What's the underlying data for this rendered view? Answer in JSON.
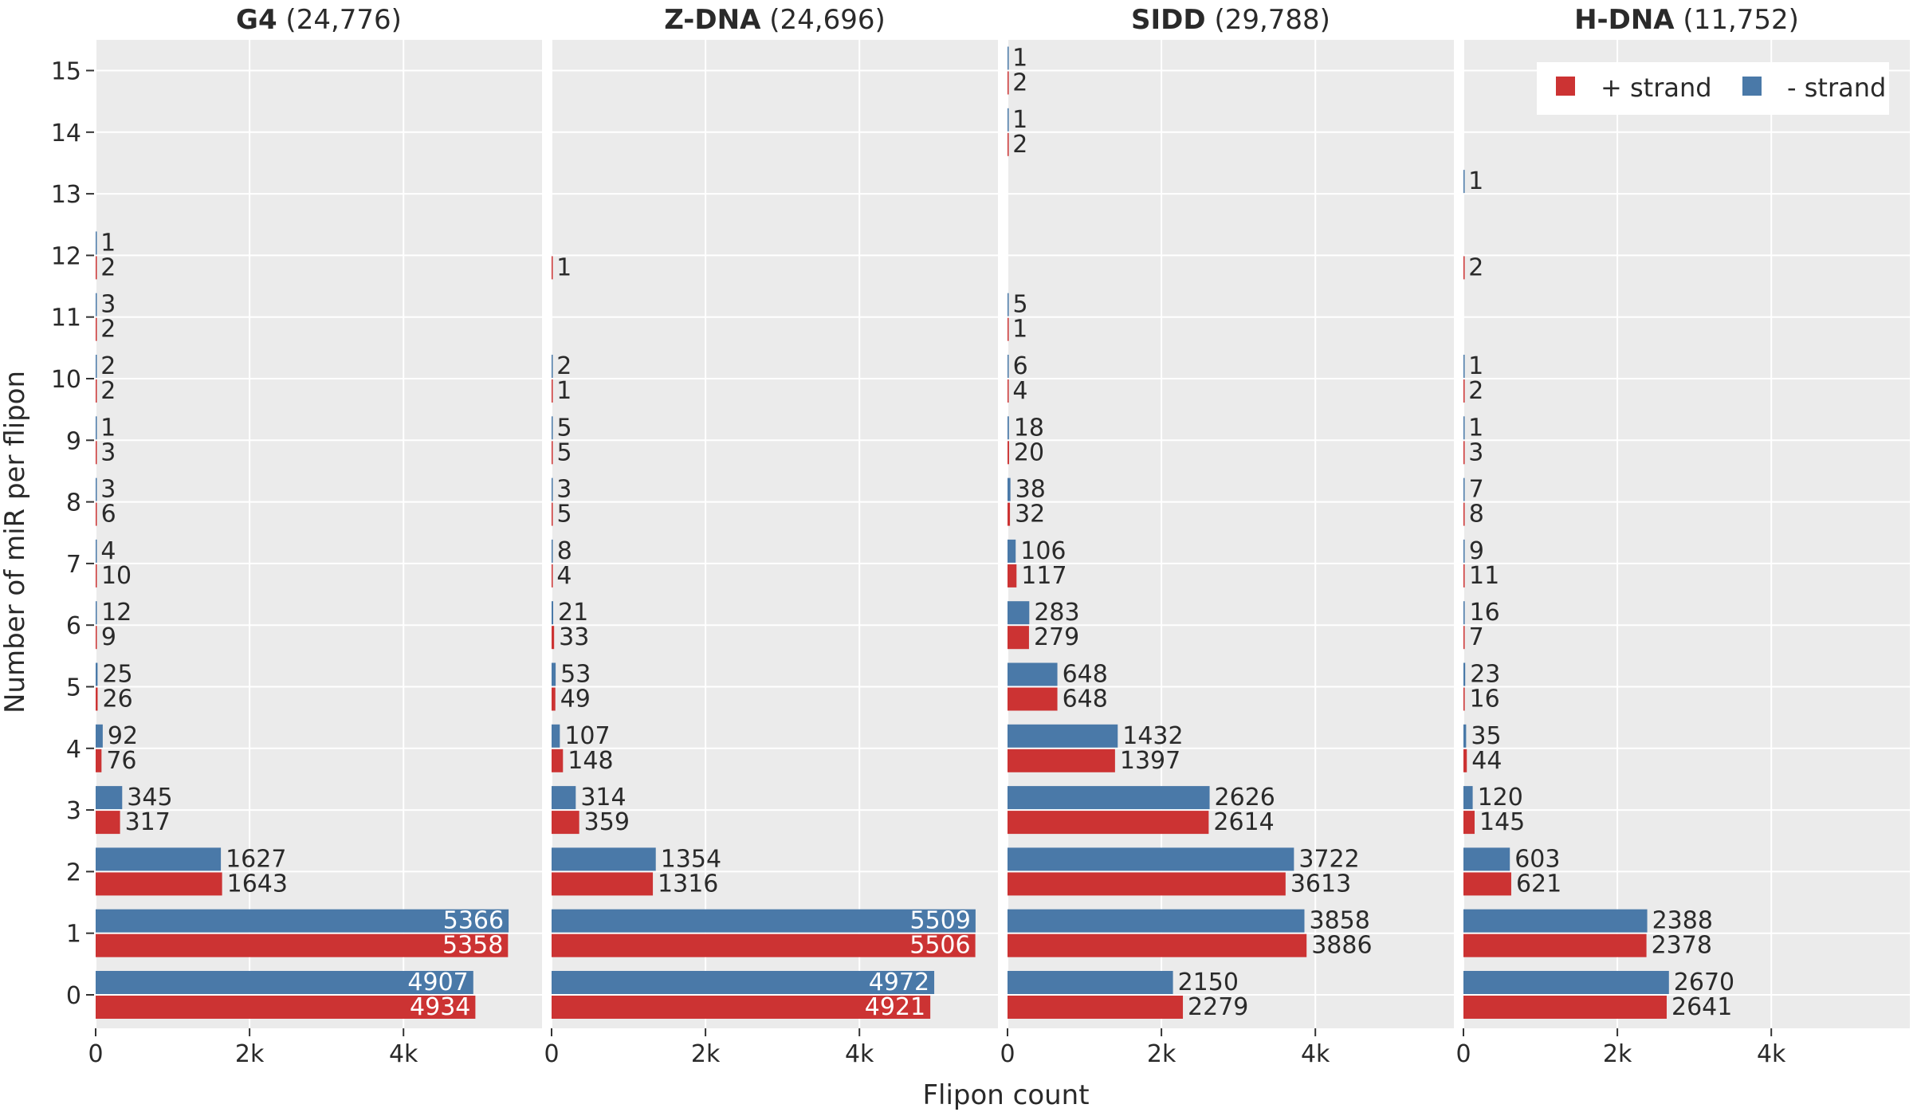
{
  "chart_data": {
    "type": "bar",
    "orientation": "horizontal",
    "xlabel": "Flipon count",
    "ylabel": "Number of miR per flipon",
    "xlim": [
      0,
      5800
    ],
    "x_ticks": [
      0,
      2000,
      4000
    ],
    "x_tick_labels": [
      "0",
      "2k",
      "4k"
    ],
    "categories": [
      "0",
      "1",
      "2",
      "3",
      "4",
      "5",
      "6",
      "7",
      "8",
      "9",
      "10",
      "11",
      "12",
      "13",
      "14",
      "15"
    ],
    "grid": true,
    "legend_position": "top-right",
    "legend": [
      {
        "name": "+ strand",
        "color": "#cc3333"
      },
      {
        "name": "- strand",
        "color": "#4a79a8"
      }
    ],
    "colors": {
      "plus": "#cc3333",
      "minus": "#4a79a8",
      "panel_bg": "#ebebeb",
      "grid": "#ffffff"
    },
    "panels": [
      {
        "name": "G4",
        "total": "(24,776)",
        "plus": [
          4934,
          5358,
          1643,
          317,
          76,
          26,
          9,
          10,
          6,
          3,
          2,
          2,
          2,
          null,
          null,
          null
        ],
        "minus": [
          4907,
          5366,
          1627,
          345,
          92,
          25,
          12,
          4,
          3,
          1,
          2,
          3,
          1,
          null,
          null,
          null
        ]
      },
      {
        "name": "Z-DNA",
        "total": "(24,696)",
        "plus": [
          4921,
          5506,
          1316,
          359,
          148,
          49,
          33,
          4,
          5,
          5,
          1,
          null,
          1,
          null,
          null,
          null
        ],
        "minus": [
          4972,
          5509,
          1354,
          314,
          107,
          53,
          21,
          8,
          3,
          5,
          2,
          null,
          null,
          null,
          null,
          null
        ]
      },
      {
        "name": "SIDD",
        "total": "(29,788)",
        "plus": [
          2279,
          3886,
          3613,
          2614,
          1397,
          648,
          279,
          117,
          32,
          20,
          4,
          1,
          null,
          null,
          2,
          2
        ],
        "minus": [
          2150,
          3858,
          3722,
          2626,
          1432,
          648,
          283,
          106,
          38,
          18,
          6,
          5,
          null,
          null,
          1,
          1
        ]
      },
      {
        "name": "H-DNA",
        "total": "(11,752)",
        "plus": [
          2641,
          2378,
          621,
          145,
          44,
          16,
          7,
          11,
          8,
          3,
          2,
          null,
          2,
          null,
          null,
          null
        ],
        "minus": [
          2670,
          2388,
          603,
          120,
          35,
          23,
          16,
          9,
          7,
          1,
          1,
          null,
          null,
          1,
          null,
          null
        ]
      }
    ]
  }
}
